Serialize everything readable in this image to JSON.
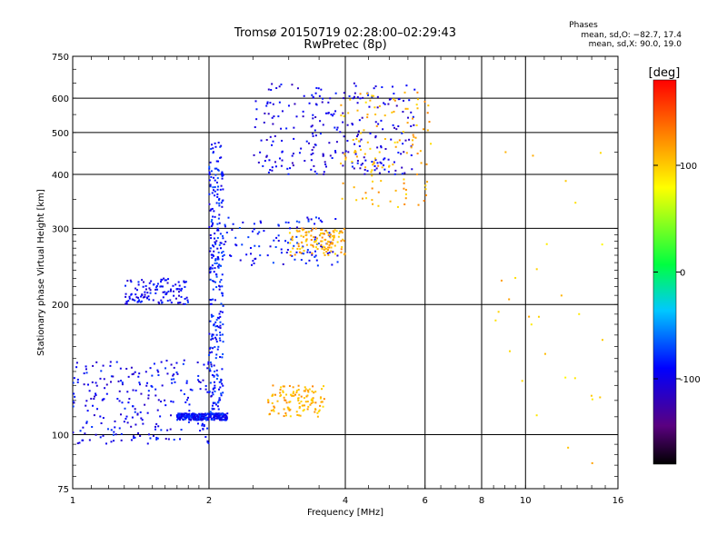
{
  "chart_data": {
    "type": "scatter",
    "title": "Tromsø 20150719 02:28:00–02:29:43",
    "subtitle": "RwPretec (8p)",
    "xlabel": "Frequency [MHz]",
    "ylabel": "Stationary phase Virtual Height [km]",
    "xscale": "log",
    "yscale": "log",
    "xlim": [
      1,
      16
    ],
    "ylim": [
      75,
      750
    ],
    "x_ticks": [
      1,
      2,
      4,
      6,
      8,
      10,
      16
    ],
    "y_ticks": [
      75,
      100,
      200,
      300,
      400,
      500,
      600,
      750
    ],
    "grid": true,
    "phases_info": {
      "title": "Phases",
      "line1": "mean, sd,O: −82.7, 17.4",
      "line2": "mean, sd,X:  90.0, 19.0"
    },
    "colorbar": {
      "label": "[deg]",
      "range": [
        -180,
        180
      ],
      "ticks": [
        100,
        0,
        -100
      ],
      "colormap": "rainbow (black-purple-blue-cyan-green-yellow-red)"
    },
    "point_groups": [
      {
        "id": "E-region",
        "x_range": [
          1.0,
          2.1
        ],
        "y_range": [
          95,
          150
        ],
        "phase_mean": -95,
        "density": "high"
      },
      {
        "id": "Es-flat",
        "x_range": [
          1.7,
          2.2
        ],
        "y_range": [
          108,
          112
        ],
        "phase_mean": -90,
        "density": "high"
      },
      {
        "id": "E-yellow",
        "x_range": [
          2.7,
          3.6
        ],
        "y_range": [
          110,
          130
        ],
        "phase_mean": 110,
        "density": "medium"
      },
      {
        "id": "F1-ledge",
        "x_range": [
          1.3,
          1.8
        ],
        "y_range": [
          200,
          230
        ],
        "phase_mean": -95,
        "density": "medium"
      },
      {
        "id": "F-vertical-2MHz",
        "x_range": [
          2.0,
          2.15
        ],
        "y_range": [
          110,
          480
        ],
        "phase_mean": -85,
        "density": "high"
      },
      {
        "id": "F-lower-O",
        "x_range": [
          2.1,
          3.9
        ],
        "y_range": [
          245,
          320
        ],
        "phase_mean": -90,
        "density": "medium"
      },
      {
        "id": "F-lower-X",
        "x_range": [
          3.0,
          4.0
        ],
        "y_range": [
          260,
          300
        ],
        "phase_mean": 110,
        "density": "medium"
      },
      {
        "id": "F-upper-O",
        "x_range": [
          2.5,
          5.7
        ],
        "y_range": [
          400,
          650
        ],
        "phase_mean": -100,
        "density": "high"
      },
      {
        "id": "F-upper-X",
        "x_range": [
          3.9,
          6.2
        ],
        "y_range": [
          330,
          620
        ],
        "phase_mean": 110,
        "density": "medium"
      },
      {
        "id": "sparse-high-freq",
        "x_range": [
          8.5,
          15
        ],
        "y_range": [
          85,
          470
        ],
        "phase_mean": 100,
        "density": "low"
      }
    ]
  }
}
